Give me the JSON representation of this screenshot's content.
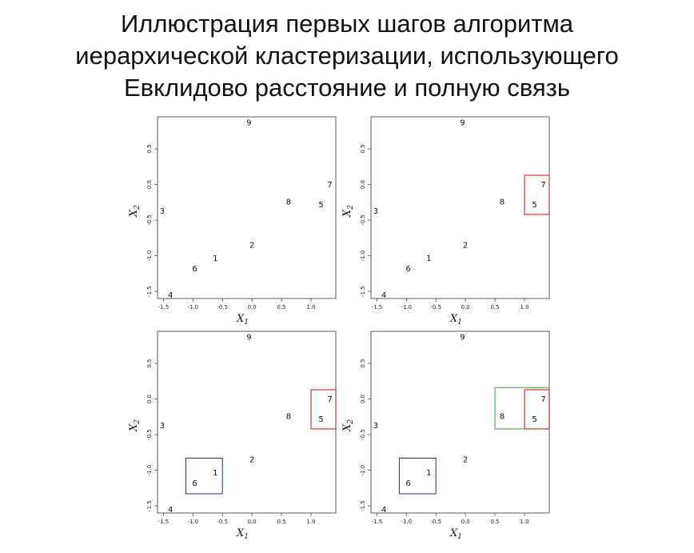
{
  "slide": {
    "title_lines": [
      "Иллюстрация первых шагов алгоритма",
      "иерархической кластеризации, использующего",
      "Евклидово расстояние и полную связь"
    ]
  },
  "chart_data": [
    {
      "type": "scatter",
      "xlabel": "X",
      "xlabel_sub": "1",
      "ylabel": "X",
      "ylabel_sub": "2",
      "xlim": [
        -1.6,
        1.42
      ],
      "ylim": [
        -1.6,
        0.95
      ],
      "xticks": [
        -1.5,
        -1.0,
        -0.5,
        0.0,
        0.5,
        1.0
      ],
      "xtick_labels": [
        "-1.5",
        "-1.0",
        "-0.5",
        "0.0",
        "0.5",
        "1.0"
      ],
      "yticks": [
        -1.5,
        -1.0,
        -0.5,
        0.0,
        0.5
      ],
      "ytick_labels": [
        "-1.5",
        "-1.0",
        "-0.5",
        "0.0",
        "0.5"
      ],
      "points": [
        {
          "label": "1",
          "x": -0.62,
          "y": -1.03
        },
        {
          "label": "2",
          "x": 0.0,
          "y": -0.85
        },
        {
          "label": "3",
          "x": -1.52,
          "y": -0.37
        },
        {
          "label": "4",
          "x": -1.38,
          "y": -1.55
        },
        {
          "label": "5",
          "x": 1.17,
          "y": -0.28
        },
        {
          "label": "6",
          "x": -0.97,
          "y": -1.18
        },
        {
          "label": "7",
          "x": 1.32,
          "y": 0.0
        },
        {
          "label": "8",
          "x": 0.62,
          "y": -0.24
        },
        {
          "label": "9",
          "x": -0.05,
          "y": 0.87
        }
      ],
      "clusters": []
    },
    {
      "type": "scatter",
      "xlabel": "X",
      "xlabel_sub": "1",
      "ylabel": "X",
      "ylabel_sub": "2",
      "xlim": [
        -1.6,
        1.42
      ],
      "ylim": [
        -1.6,
        0.95
      ],
      "xticks": [
        -1.5,
        -1.0,
        -0.5,
        0.0,
        0.5,
        1.0
      ],
      "xtick_labels": [
        "-1.5",
        "-1.0",
        "-0.5",
        "0.0",
        "0.5",
        "1.0"
      ],
      "yticks": [
        -1.5,
        -1.0,
        -0.5,
        0.0,
        0.5
      ],
      "ytick_labels": [
        "-1.5",
        "-1.0",
        "-0.5",
        "0.0",
        "0.5"
      ],
      "points": [
        {
          "label": "1",
          "x": -0.62,
          "y": -1.03
        },
        {
          "label": "2",
          "x": 0.0,
          "y": -0.85
        },
        {
          "label": "3",
          "x": -1.52,
          "y": -0.37
        },
        {
          "label": "4",
          "x": -1.38,
          "y": -1.55
        },
        {
          "label": "5",
          "x": 1.17,
          "y": -0.28
        },
        {
          "label": "6",
          "x": -0.97,
          "y": -1.18
        },
        {
          "label": "7",
          "x": 1.32,
          "y": 0.0
        },
        {
          "label": "8",
          "x": 0.62,
          "y": -0.24
        },
        {
          "label": "9",
          "x": -0.05,
          "y": 0.87
        }
      ],
      "clusters": [
        {
          "color": "#cc2222",
          "x0": 1.0,
          "x1": 1.42,
          "y0": -0.42,
          "y1": 0.13
        }
      ]
    },
    {
      "type": "scatter",
      "xlabel": "X",
      "xlabel_sub": "1",
      "ylabel": "X",
      "ylabel_sub": "2",
      "xlim": [
        -1.6,
        1.42
      ],
      "ylim": [
        -1.6,
        0.95
      ],
      "xticks": [
        -1.5,
        -1.0,
        -0.5,
        0.0,
        0.5,
        1.0
      ],
      "xtick_labels": [
        "-1.5",
        "-1.0",
        "-0.5",
        "0.0",
        "0.5",
        "1.0"
      ],
      "yticks": [
        -1.5,
        -1.0,
        -0.5,
        0.0,
        0.5
      ],
      "ytick_labels": [
        "-1.5",
        "-1.0",
        "-0.5",
        "0.0",
        "0.5"
      ],
      "points": [
        {
          "label": "1",
          "x": -0.62,
          "y": -1.03
        },
        {
          "label": "2",
          "x": 0.0,
          "y": -0.85
        },
        {
          "label": "3",
          "x": -1.52,
          "y": -0.37
        },
        {
          "label": "4",
          "x": -1.38,
          "y": -1.55
        },
        {
          "label": "5",
          "x": 1.17,
          "y": -0.28
        },
        {
          "label": "6",
          "x": -0.97,
          "y": -1.18
        },
        {
          "label": "7",
          "x": 1.32,
          "y": 0.0
        },
        {
          "label": "8",
          "x": 0.62,
          "y": -0.24
        },
        {
          "label": "9",
          "x": -0.05,
          "y": 0.87
        }
      ],
      "clusters": [
        {
          "color": "#cc2222",
          "x0": 1.0,
          "x1": 1.42,
          "y0": -0.42,
          "y1": 0.13
        },
        {
          "color": "#2a3f8f",
          "x0": -1.12,
          "x1": -0.5,
          "y0": -1.33,
          "y1": -0.83
        }
      ]
    },
    {
      "type": "scatter",
      "xlabel": "X",
      "xlabel_sub": "1",
      "ylabel": "X",
      "ylabel_sub": "2",
      "xlim": [
        -1.6,
        1.42
      ],
      "ylim": [
        -1.6,
        0.95
      ],
      "xticks": [
        -1.5,
        -1.0,
        -0.5,
        0.0,
        0.5,
        1.0
      ],
      "xtick_labels": [
        "-1.5",
        "-1.0",
        "-0.5",
        "0.0",
        "0.5",
        "1.0"
      ],
      "yticks": [
        -1.5,
        -1.0,
        -0.5,
        0.0,
        0.5
      ],
      "ytick_labels": [
        "-1.5",
        "-1.0",
        "-0.5",
        "0.0",
        "0.5"
      ],
      "points": [
        {
          "label": "1",
          "x": -0.62,
          "y": -1.03
        },
        {
          "label": "2",
          "x": 0.0,
          "y": -0.85
        },
        {
          "label": "3",
          "x": -1.52,
          "y": -0.37
        },
        {
          "label": "4",
          "x": -1.38,
          "y": -1.55
        },
        {
          "label": "5",
          "x": 1.17,
          "y": -0.28
        },
        {
          "label": "6",
          "x": -0.97,
          "y": -1.18
        },
        {
          "label": "7",
          "x": 1.32,
          "y": 0.0
        },
        {
          "label": "8",
          "x": 0.62,
          "y": -0.24
        },
        {
          "label": "9",
          "x": -0.05,
          "y": 0.87
        }
      ],
      "clusters": [
        {
          "color": "#44aa44",
          "x0": 0.5,
          "x1": 1.42,
          "y0": -0.42,
          "y1": 0.16
        },
        {
          "color": "#cc2222",
          "x0": 1.0,
          "x1": 1.42,
          "y0": -0.42,
          "y1": 0.13
        },
        {
          "color": "#2a3f8f",
          "x0": -1.12,
          "x1": -0.5,
          "y0": -1.33,
          "y1": -0.83
        }
      ]
    }
  ]
}
